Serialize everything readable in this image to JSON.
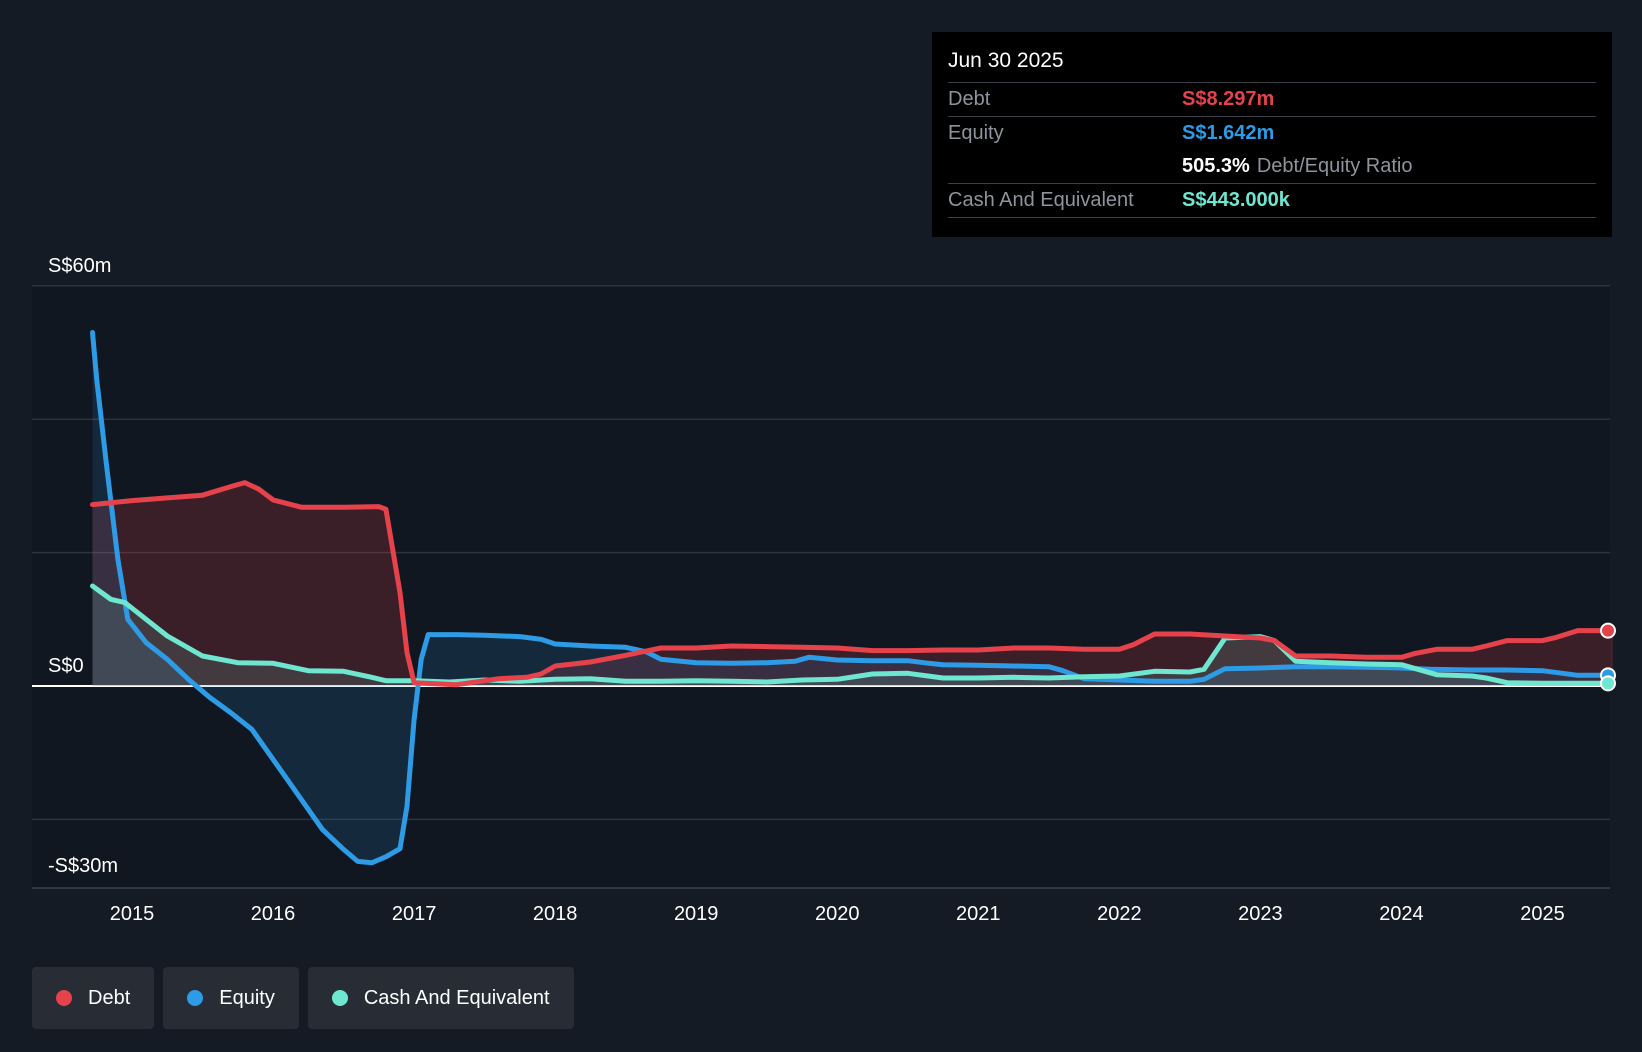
{
  "tooltip": {
    "date": "Jun 30 2025",
    "rows": [
      {
        "label": "Debt",
        "value": "S$8.297m",
        "color": "#e5424b"
      },
      {
        "label": "Equity",
        "value": "S$1.642m",
        "color": "#2d9be5"
      },
      {
        "ratio_value": "505.3%",
        "ratio_label": "Debt/Equity Ratio"
      },
      {
        "label": "Cash And Equivalent",
        "value": "S$443.000k",
        "color": "#6ee6d0"
      }
    ]
  },
  "legend": [
    {
      "label": "Debt",
      "color": "#e5424b"
    },
    {
      "label": "Equity",
      "color": "#2d9be5"
    },
    {
      "label": "Cash And Equivalent",
      "color": "#6ee6d0"
    }
  ],
  "chart_data": {
    "type": "line",
    "y_tick_labels": [
      "S$60m",
      "S$0",
      "-S$30m"
    ],
    "y_gridlines": [
      60,
      40,
      20,
      0,
      -20
    ],
    "ylim": [
      -30,
      60
    ],
    "xlim": [
      2014.5,
      2025.5
    ],
    "x_ticks": [
      2015,
      2016,
      2017,
      2018,
      2019,
      2020,
      2021,
      2022,
      2023,
      2024,
      2025
    ],
    "x_tick_labels": [
      "2015",
      "2016",
      "2017",
      "2018",
      "2019",
      "2020",
      "2021",
      "2022",
      "2023",
      "2024",
      "2025"
    ],
    "grid": true,
    "legend_position": "bottom-left",
    "series": [
      {
        "name": "Debt",
        "color": "#e5424b",
        "points": [
          [
            2014.72,
            27.2
          ],
          [
            2015.0,
            27.8
          ],
          [
            2015.25,
            28.2
          ],
          [
            2015.5,
            28.6
          ],
          [
            2015.7,
            29.9
          ],
          [
            2015.8,
            30.5
          ],
          [
            2015.9,
            29.5
          ],
          [
            2016.0,
            27.9
          ],
          [
            2016.2,
            26.8
          ],
          [
            2016.5,
            26.8
          ],
          [
            2016.75,
            26.9
          ],
          [
            2016.8,
            26.5
          ],
          [
            2016.9,
            14.0
          ],
          [
            2016.95,
            5.0
          ],
          [
            2017.0,
            0.5
          ],
          [
            2017.3,
            0.2
          ],
          [
            2017.6,
            1.1
          ],
          [
            2017.8,
            1.3
          ],
          [
            2017.9,
            1.8
          ],
          [
            2018.0,
            3.0
          ],
          [
            2018.25,
            3.6
          ],
          [
            2018.5,
            4.6
          ],
          [
            2018.75,
            5.7
          ],
          [
            2019.0,
            5.7
          ],
          [
            2019.25,
            6.0
          ],
          [
            2019.5,
            5.9
          ],
          [
            2019.75,
            5.8
          ],
          [
            2020.0,
            5.7
          ],
          [
            2020.25,
            5.3
          ],
          [
            2020.5,
            5.3
          ],
          [
            2020.75,
            5.4
          ],
          [
            2021.0,
            5.4
          ],
          [
            2021.25,
            5.7
          ],
          [
            2021.5,
            5.7
          ],
          [
            2021.75,
            5.5
          ],
          [
            2022.0,
            5.5
          ],
          [
            2022.1,
            6.2
          ],
          [
            2022.25,
            7.8
          ],
          [
            2022.5,
            7.8
          ],
          [
            2022.75,
            7.5
          ],
          [
            2023.0,
            7.2
          ],
          [
            2023.1,
            6.8
          ],
          [
            2023.25,
            4.5
          ],
          [
            2023.5,
            4.5
          ],
          [
            2023.75,
            4.3
          ],
          [
            2024.0,
            4.3
          ],
          [
            2024.1,
            4.9
          ],
          [
            2024.25,
            5.5
          ],
          [
            2024.5,
            5.5
          ],
          [
            2024.6,
            6.0
          ],
          [
            2024.75,
            6.8
          ],
          [
            2025.0,
            6.8
          ],
          [
            2025.1,
            7.3
          ],
          [
            2025.25,
            8.3
          ],
          [
            2025.5,
            8.3
          ]
        ]
      },
      {
        "name": "Equity",
        "color": "#2d9be5",
        "points": [
          [
            2014.72,
            53.0
          ],
          [
            2014.75,
            46.0
          ],
          [
            2014.82,
            33.0
          ],
          [
            2014.9,
            19.0
          ],
          [
            2014.97,
            10.0
          ],
          [
            2015.1,
            6.5
          ],
          [
            2015.25,
            4.0
          ],
          [
            2015.4,
            1.0
          ],
          [
            2015.55,
            -1.7
          ],
          [
            2015.7,
            -4.0
          ],
          [
            2015.85,
            -6.5
          ],
          [
            2016.0,
            -11.0
          ],
          [
            2016.2,
            -17.0
          ],
          [
            2016.35,
            -21.5
          ],
          [
            2016.5,
            -24.5
          ],
          [
            2016.6,
            -26.3
          ],
          [
            2016.7,
            -26.5
          ],
          [
            2016.8,
            -25.6
          ],
          [
            2016.9,
            -24.4
          ],
          [
            2016.95,
            -18.0
          ],
          [
            2017.0,
            -5.0
          ],
          [
            2017.05,
            4.0
          ],
          [
            2017.1,
            7.7
          ],
          [
            2017.3,
            7.7
          ],
          [
            2017.5,
            7.6
          ],
          [
            2017.75,
            7.4
          ],
          [
            2017.9,
            7.0
          ],
          [
            2018.0,
            6.3
          ],
          [
            2018.25,
            6.0
          ],
          [
            2018.5,
            5.8
          ],
          [
            2018.65,
            5.1
          ],
          [
            2018.75,
            4.0
          ],
          [
            2019.0,
            3.5
          ],
          [
            2019.25,
            3.4
          ],
          [
            2019.5,
            3.5
          ],
          [
            2019.7,
            3.7
          ],
          [
            2019.8,
            4.3
          ],
          [
            2020.0,
            3.9
          ],
          [
            2020.25,
            3.8
          ],
          [
            2020.5,
            3.8
          ],
          [
            2020.65,
            3.4
          ],
          [
            2020.75,
            3.2
          ],
          [
            2021.0,
            3.1
          ],
          [
            2021.25,
            3.0
          ],
          [
            2021.5,
            2.9
          ],
          [
            2021.6,
            2.3
          ],
          [
            2021.75,
            1.1
          ],
          [
            2022.0,
            0.9
          ],
          [
            2022.25,
            0.7
          ],
          [
            2022.5,
            0.7
          ],
          [
            2022.6,
            1.0
          ],
          [
            2022.75,
            2.6
          ],
          [
            2023.0,
            2.7
          ],
          [
            2023.25,
            2.9
          ],
          [
            2023.5,
            2.9
          ],
          [
            2023.75,
            2.8
          ],
          [
            2024.0,
            2.7
          ],
          [
            2024.2,
            2.5
          ],
          [
            2024.5,
            2.4
          ],
          [
            2024.75,
            2.4
          ],
          [
            2025.0,
            2.3
          ],
          [
            2025.25,
            1.6
          ],
          [
            2025.5,
            1.6
          ]
        ]
      },
      {
        "name": "Cash And Equivalent",
        "color": "#6ee6d0",
        "points": [
          [
            2014.72,
            15.0
          ],
          [
            2014.85,
            13.0
          ],
          [
            2014.95,
            12.5
          ],
          [
            2015.1,
            10.0
          ],
          [
            2015.25,
            7.5
          ],
          [
            2015.5,
            4.5
          ],
          [
            2015.75,
            3.5
          ],
          [
            2016.0,
            3.4
          ],
          [
            2016.25,
            2.3
          ],
          [
            2016.5,
            2.2
          ],
          [
            2016.7,
            1.3
          ],
          [
            2016.8,
            0.8
          ],
          [
            2017.0,
            0.8
          ],
          [
            2017.25,
            0.6
          ],
          [
            2017.5,
            0.9
          ],
          [
            2017.75,
            0.7
          ],
          [
            2018.0,
            1.0
          ],
          [
            2018.25,
            1.1
          ],
          [
            2018.5,
            0.7
          ],
          [
            2018.75,
            0.7
          ],
          [
            2019.0,
            0.8
          ],
          [
            2019.25,
            0.7
          ],
          [
            2019.5,
            0.6
          ],
          [
            2019.75,
            0.9
          ],
          [
            2020.0,
            1.0
          ],
          [
            2020.25,
            1.8
          ],
          [
            2020.5,
            1.9
          ],
          [
            2020.75,
            1.2
          ],
          [
            2021.0,
            1.2
          ],
          [
            2021.25,
            1.3
          ],
          [
            2021.5,
            1.2
          ],
          [
            2021.75,
            1.4
          ],
          [
            2022.0,
            1.5
          ],
          [
            2022.25,
            2.2
          ],
          [
            2022.5,
            2.1
          ],
          [
            2022.6,
            2.5
          ],
          [
            2022.75,
            7.2
          ],
          [
            2023.0,
            7.4
          ],
          [
            2023.1,
            6.8
          ],
          [
            2023.25,
            3.7
          ],
          [
            2023.5,
            3.5
          ],
          [
            2023.75,
            3.3
          ],
          [
            2024.0,
            3.2
          ],
          [
            2024.25,
            1.7
          ],
          [
            2024.5,
            1.5
          ],
          [
            2024.6,
            1.2
          ],
          [
            2024.75,
            0.5
          ],
          [
            2025.0,
            0.4
          ],
          [
            2025.25,
            0.4
          ],
          [
            2025.5,
            0.4
          ]
        ]
      }
    ]
  }
}
